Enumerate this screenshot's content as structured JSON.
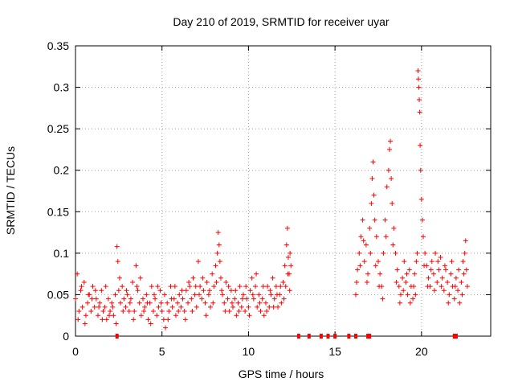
{
  "chart_data": {
    "type": "scatter",
    "title": "Day 210 of 2019, SRMTID for receiver uyar",
    "xlabel": "GPS time / hours",
    "ylabel": "SRMTID / TECUs",
    "xlim": [
      0,
      24
    ],
    "ylim": [
      0,
      0.35
    ],
    "x_ticks": [
      0,
      5,
      10,
      15,
      20
    ],
    "x_tick_labels": [
      "0",
      "5",
      "10",
      "15",
      "20"
    ],
    "y_ticks": [
      0,
      0.05,
      0.1,
      0.15,
      0.2,
      0.25,
      0.3,
      0.35
    ],
    "y_tick_labels": [
      "0",
      "0.05",
      "0.1",
      "0.15",
      "0.2",
      "0.25",
      "0.3",
      "0.35"
    ],
    "grid": true,
    "marker": "plus",
    "color": "#ff0000",
    "series": [
      {
        "name": "SRMTID",
        "points": [
          [
            0.0,
            0.045
          ],
          [
            0.1,
            0.075
          ],
          [
            0.2,
            0.03
          ],
          [
            0.3,
            0.055
          ],
          [
            0.4,
            0.035
          ],
          [
            0.5,
            0.065
          ],
          [
            0.6,
            0.025
          ],
          [
            0.7,
            0.04
          ],
          [
            0.8,
            0.05
          ],
          [
            0.9,
            0.03
          ],
          [
            1.0,
            0.06
          ],
          [
            1.1,
            0.035
          ],
          [
            1.2,
            0.045
          ],
          [
            1.3,
            0.025
          ],
          [
            1.4,
            0.04
          ],
          [
            1.5,
            0.055
          ],
          [
            1.6,
            0.03
          ],
          [
            1.7,
            0.035
          ],
          [
            1.8,
            0.02
          ],
          [
            1.9,
            0.045
          ],
          [
            2.0,
            0.03
          ],
          [
            2.1,
            0.04
          ],
          [
            2.2,
            0.025
          ],
          [
            2.3,
            0.05
          ],
          [
            2.4,
            0.108
          ],
          [
            2.45,
            0.09
          ],
          [
            2.5,
            0.055
          ],
          [
            2.6,
            0.04
          ],
          [
            2.7,
            0.06
          ],
          [
            2.8,
            0.045
          ],
          [
            2.9,
            0.035
          ],
          [
            3.0,
            0.05
          ],
          [
            3.1,
            0.03
          ],
          [
            3.2,
            0.045
          ],
          [
            3.3,
            0.065
          ],
          [
            3.4,
            0.03
          ],
          [
            3.5,
            0.085
          ],
          [
            3.6,
            0.055
          ],
          [
            3.7,
            0.04
          ],
          [
            3.8,
            0.025
          ],
          [
            3.9,
            0.045
          ],
          [
            4.0,
            0.035
          ],
          [
            4.1,
            0.05
          ],
          [
            4.2,
            0.02
          ],
          [
            4.3,
            0.04
          ],
          [
            4.4,
            0.06
          ],
          [
            4.5,
            0.03
          ],
          [
            4.6,
            0.045
          ],
          [
            4.7,
            0.025
          ],
          [
            4.8,
            0.035
          ],
          [
            4.9,
            0.055
          ],
          [
            5.0,
            0.03
          ],
          [
            5.1,
            0.02
          ],
          [
            5.2,
            0.01
          ],
          [
            5.3,
            0.04
          ],
          [
            5.4,
            0.03
          ],
          [
            5.5,
            0.06
          ],
          [
            5.6,
            0.035
          ],
          [
            5.7,
            0.045
          ],
          [
            5.8,
            0.025
          ],
          [
            5.9,
            0.04
          ],
          [
            6.0,
            0.05
          ],
          [
            6.1,
            0.035
          ],
          [
            6.2,
            0.045
          ],
          [
            6.3,
            0.03
          ],
          [
            6.4,
            0.055
          ],
          [
            6.5,
            0.04
          ],
          [
            6.6,
            0.06
          ],
          [
            6.7,
            0.045
          ],
          [
            6.8,
            0.07
          ],
          [
            6.9,
            0.05
          ],
          [
            7.0,
            0.035
          ],
          [
            7.1,
            0.09
          ],
          [
            7.2,
            0.06
          ],
          [
            7.3,
            0.045
          ],
          [
            7.4,
            0.055
          ],
          [
            7.5,
            0.04
          ],
          [
            7.6,
            0.065
          ],
          [
            7.7,
            0.05
          ],
          [
            7.8,
            0.035
          ],
          [
            7.9,
            0.075
          ],
          [
            8.0,
            0.06
          ],
          [
            8.1,
            0.085
          ],
          [
            8.2,
            0.1
          ],
          [
            8.25,
            0.125
          ],
          [
            8.3,
            0.11
          ],
          [
            8.4,
            0.07
          ],
          [
            8.5,
            0.05
          ],
          [
            8.6,
            0.04
          ],
          [
            8.7,
            0.065
          ],
          [
            8.8,
            0.045
          ],
          [
            8.9,
            0.03
          ],
          [
            9.0,
            0.055
          ],
          [
            9.1,
            0.035
          ],
          [
            9.2,
            0.045
          ],
          [
            9.3,
            0.025
          ],
          [
            9.4,
            0.04
          ],
          [
            9.5,
            0.06
          ],
          [
            9.6,
            0.035
          ],
          [
            9.7,
            0.05
          ],
          [
            9.8,
            0.03
          ],
          [
            9.9,
            0.045
          ],
          [
            10.0,
            0.035
          ],
          [
            10.1,
            0.055
          ],
          [
            10.2,
            0.07
          ],
          [
            10.3,
            0.045
          ],
          [
            10.4,
            0.06
          ],
          [
            10.5,
            0.035
          ],
          [
            10.6,
            0.05
          ],
          [
            10.7,
            0.03
          ],
          [
            10.8,
            0.045
          ],
          [
            10.9,
            0.025
          ],
          [
            11.0,
            0.04
          ],
          [
            11.1,
            0.06
          ],
          [
            11.2,
            0.035
          ],
          [
            11.3,
            0.05
          ],
          [
            11.4,
            0.07
          ],
          [
            11.5,
            0.045
          ],
          [
            11.6,
            0.06
          ],
          [
            11.7,
            0.035
          ],
          [
            11.8,
            0.05
          ],
          [
            11.9,
            0.04
          ],
          [
            12.0,
            0.065
          ],
          [
            12.1,
            0.085
          ],
          [
            12.2,
            0.11
          ],
          [
            12.25,
            0.13
          ],
          [
            12.3,
            0.095
          ],
          [
            12.35,
            0.075
          ],
          [
            12.4,
            0.1
          ],
          [
            12.45,
            0.085
          ],
          [
            0.15,
            0.02
          ],
          [
            0.35,
            0.06
          ],
          [
            0.55,
            0.015
          ],
          [
            0.75,
            0.05
          ],
          [
            0.95,
            0.045
          ],
          [
            1.15,
            0.055
          ],
          [
            1.35,
            0.035
          ],
          [
            1.55,
            0.02
          ],
          [
            1.75,
            0.06
          ],
          [
            1.95,
            0.025
          ],
          [
            2.15,
            0.035
          ],
          [
            2.35,
            0.015
          ],
          [
            2.55,
            0.07
          ],
          [
            2.75,
            0.03
          ],
          [
            2.95,
            0.055
          ],
          [
            3.15,
            0.04
          ],
          [
            3.35,
            0.02
          ],
          [
            3.55,
            0.06
          ],
          [
            3.75,
            0.07
          ],
          [
            3.95,
            0.03
          ],
          [
            4.15,
            0.04
          ],
          [
            4.35,
            0.015
          ],
          [
            4.55,
            0.05
          ],
          [
            4.75,
            0.06
          ],
          [
            4.95,
            0.04
          ],
          [
            5.15,
            0.05
          ],
          [
            5.35,
            0.02
          ],
          [
            5.55,
            0.045
          ],
          [
            5.75,
            0.06
          ],
          [
            5.95,
            0.03
          ],
          [
            6.15,
            0.055
          ],
          [
            6.35,
            0.02
          ],
          [
            6.55,
            0.065
          ],
          [
            6.75,
            0.03
          ],
          [
            6.95,
            0.06
          ],
          [
            7.15,
            0.05
          ],
          [
            7.35,
            0.07
          ],
          [
            7.55,
            0.025
          ],
          [
            7.75,
            0.055
          ],
          [
            7.95,
            0.04
          ],
          [
            8.15,
            0.065
          ],
          [
            8.35,
            0.09
          ],
          [
            8.45,
            0.055
          ],
          [
            8.65,
            0.03
          ],
          [
            8.85,
            0.06
          ],
          [
            9.05,
            0.04
          ],
          [
            9.25,
            0.055
          ],
          [
            9.45,
            0.03
          ],
          [
            9.65,
            0.045
          ],
          [
            9.85,
            0.06
          ],
          [
            10.05,
            0.025
          ],
          [
            10.25,
            0.05
          ],
          [
            10.45,
            0.075
          ],
          [
            10.65,
            0.04
          ],
          [
            10.85,
            0.06
          ],
          [
            11.05,
            0.03
          ],
          [
            11.25,
            0.055
          ],
          [
            11.45,
            0.035
          ],
          [
            11.65,
            0.05
          ],
          [
            11.85,
            0.06
          ],
          [
            12.05,
            0.045
          ],
          [
            12.15,
            0.06
          ],
          [
            12.28,
            0.075
          ],
          [
            12.38,
            0.055
          ],
          [
            16.2,
            0.05
          ],
          [
            16.3,
            0.08
          ],
          [
            16.4,
            0.1
          ],
          [
            16.5,
            0.12
          ],
          [
            16.6,
            0.14
          ],
          [
            16.7,
            0.09
          ],
          [
            16.8,
            0.11
          ],
          [
            16.9,
            0.075
          ],
          [
            17.0,
            0.13
          ],
          [
            17.1,
            0.16
          ],
          [
            17.15,
            0.19
          ],
          [
            17.2,
            0.21
          ],
          [
            17.25,
            0.17
          ],
          [
            17.3,
            0.14
          ],
          [
            17.4,
            0.12
          ],
          [
            17.5,
            0.09
          ],
          [
            17.6,
            0.075
          ],
          [
            17.7,
            0.06
          ],
          [
            17.8,
            0.1
          ],
          [
            17.9,
            0.14
          ],
          [
            18.0,
            0.18
          ],
          [
            18.1,
            0.2
          ],
          [
            18.15,
            0.225
          ],
          [
            18.2,
            0.235
          ],
          [
            18.25,
            0.19
          ],
          [
            18.3,
            0.16
          ],
          [
            18.4,
            0.13
          ],
          [
            18.5,
            0.1
          ],
          [
            18.6,
            0.08
          ],
          [
            18.7,
            0.06
          ],
          [
            18.8,
            0.05
          ],
          [
            18.9,
            0.07
          ],
          [
            19.0,
            0.09
          ],
          [
            19.1,
            0.065
          ],
          [
            19.2,
            0.05
          ],
          [
            19.3,
            0.08
          ],
          [
            19.4,
            0.06
          ],
          [
            19.5,
            0.045
          ],
          [
            19.6,
            0.075
          ],
          [
            19.7,
            0.09
          ],
          [
            19.75,
            0.1
          ],
          [
            19.8,
            0.32
          ],
          [
            19.82,
            0.31
          ],
          [
            19.85,
            0.3
          ],
          [
            19.87,
            0.285
          ],
          [
            19.9,
            0.27
          ],
          [
            19.92,
            0.23
          ],
          [
            19.95,
            0.2
          ],
          [
            20.0,
            0.165
          ],
          [
            20.05,
            0.14
          ],
          [
            20.1,
            0.12
          ],
          [
            20.2,
            0.1
          ],
          [
            20.3,
            0.085
          ],
          [
            20.4,
            0.07
          ],
          [
            20.5,
            0.06
          ],
          [
            20.6,
            0.09
          ],
          [
            20.7,
            0.075
          ],
          [
            20.8,
            0.1
          ],
          [
            20.9,
            0.065
          ],
          [
            21.0,
            0.08
          ],
          [
            21.1,
            0.095
          ],
          [
            21.2,
            0.07
          ],
          [
            21.3,
            0.055
          ],
          [
            21.4,
            0.08
          ],
          [
            21.5,
            0.065
          ],
          [
            21.6,
            0.05
          ],
          [
            21.7,
            0.075
          ],
          [
            21.8,
            0.06
          ],
          [
            21.9,
            0.045
          ],
          [
            22.0,
            0.07
          ],
          [
            22.1,
            0.055
          ],
          [
            22.2,
            0.04
          ],
          [
            22.3,
            0.065
          ],
          [
            22.4,
            0.09
          ],
          [
            22.5,
            0.1
          ],
          [
            22.55,
            0.115
          ],
          [
            22.6,
            0.08
          ],
          [
            22.65,
            0.06
          ],
          [
            16.25,
            0.065
          ],
          [
            16.45,
            0.085
          ],
          [
            16.65,
            0.115
          ],
          [
            16.85,
            0.065
          ],
          [
            17.05,
            0.1
          ],
          [
            17.35,
            0.085
          ],
          [
            17.55,
            0.06
          ],
          [
            17.75,
            0.045
          ],
          [
            17.95,
            0.12
          ],
          [
            18.35,
            0.11
          ],
          [
            18.55,
            0.065
          ],
          [
            18.75,
            0.04
          ],
          [
            18.95,
            0.055
          ],
          [
            19.15,
            0.075
          ],
          [
            19.35,
            0.04
          ],
          [
            19.55,
            0.06
          ],
          [
            19.65,
            0.05
          ],
          [
            20.15,
            0.085
          ],
          [
            20.35,
            0.06
          ],
          [
            20.55,
            0.08
          ],
          [
            20.75,
            0.055
          ],
          [
            20.95,
            0.09
          ],
          [
            21.15,
            0.06
          ],
          [
            21.35,
            0.085
          ],
          [
            21.55,
            0.04
          ],
          [
            21.75,
            0.09
          ],
          [
            21.95,
            0.06
          ],
          [
            22.15,
            0.08
          ],
          [
            22.35,
            0.05
          ],
          [
            22.45,
            0.075
          ]
        ],
        "gap_markers_x": [
          2.4,
          12.9,
          13.5,
          14.2,
          14.6,
          15.0,
          15.8,
          16.2,
          16.9,
          17.0,
          21.9,
          22.0
        ]
      }
    ]
  }
}
